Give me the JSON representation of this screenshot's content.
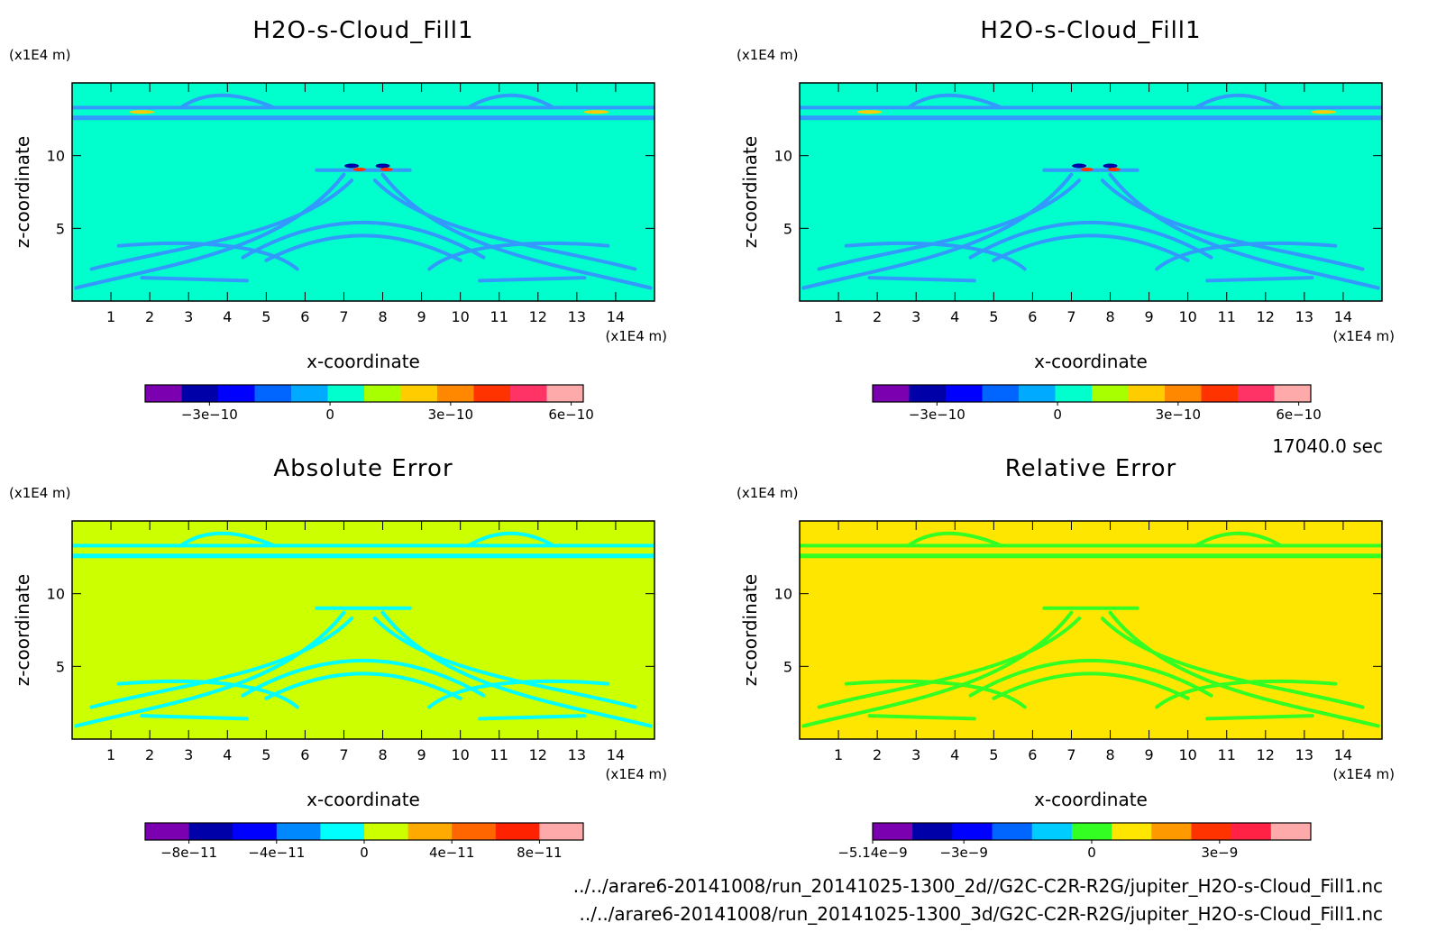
{
  "time_label": "17040.0 sec",
  "files": [
    "../../arare6-20141008/run_20141025-1300_2d//G2C-C2R-R2G/jupiter_H2O-s-Cloud_Fill1.nc",
    "../../arare6-20141008/run_20141025-1300_3d/G2C-C2R-R2G/jupiter_H2O-s-Cloud_Fill1.nc"
  ],
  "chart_data": [
    {
      "type": "heatmap",
      "title": "H2O-s-Cloud_Fill1",
      "xlabel": "x-coordinate",
      "ylabel": "z-coordinate",
      "x_unit": "(x1E4 m)",
      "y_unit": "(x1E4 m)",
      "xlim": [
        0,
        15
      ],
      "ylim": [
        0,
        15
      ],
      "xticks": [
        1,
        2,
        3,
        4,
        5,
        6,
        7,
        8,
        9,
        10,
        11,
        12,
        13,
        14
      ],
      "yticks": [
        5,
        10
      ],
      "background_color": "#00ffcc",
      "structure_color": "#3399ff",
      "colorbar": {
        "colors": [
          "#7a00b0",
          "#0000a8",
          "#0000ff",
          "#0066ff",
          "#00aaff",
          "#00ffcc",
          "#a8ff00",
          "#ffcc00",
          "#ff8800",
          "#ff3300",
          "#ff3366",
          "#ffaaaa"
        ],
        "tick_values": [
          -3e-10,
          0,
          3e-10,
          6e-10
        ],
        "tick_labels": [
          "−3e−10",
          "0",
          "3e−10",
          "6e−10"
        ],
        "range": [
          -4.6e-10,
          6.3e-10
        ]
      }
    },
    {
      "type": "heatmap",
      "title": "H2O-s-Cloud_Fill1",
      "xlabel": "x-coordinate",
      "ylabel": "z-coordinate",
      "x_unit": "(x1E4 m)",
      "y_unit": "(x1E4 m)",
      "xlim": [
        0,
        15
      ],
      "ylim": [
        0,
        15
      ],
      "xticks": [
        1,
        2,
        3,
        4,
        5,
        6,
        7,
        8,
        9,
        10,
        11,
        12,
        13,
        14
      ],
      "yticks": [
        5,
        10
      ],
      "background_color": "#00ffcc",
      "structure_color": "#3399ff",
      "colorbar": {
        "colors": [
          "#7a00b0",
          "#0000a8",
          "#0000ff",
          "#0066ff",
          "#00aaff",
          "#00ffcc",
          "#a8ff00",
          "#ffcc00",
          "#ff8800",
          "#ff3300",
          "#ff3366",
          "#ffaaaa"
        ],
        "tick_values": [
          -3e-10,
          0,
          3e-10,
          6e-10
        ],
        "tick_labels": [
          "−3e−10",
          "0",
          "3e−10",
          "6e−10"
        ],
        "range": [
          -4.6e-10,
          6.3e-10
        ]
      }
    },
    {
      "type": "heatmap",
      "title": "Absolute Error",
      "xlabel": "x-coordinate",
      "ylabel": "z-coordinate",
      "x_unit": "(x1E4 m)",
      "y_unit": "(x1E4 m)",
      "xlim": [
        0,
        15
      ],
      "ylim": [
        0,
        15
      ],
      "xticks": [
        1,
        2,
        3,
        4,
        5,
        6,
        7,
        8,
        9,
        10,
        11,
        12,
        13,
        14
      ],
      "yticks": [
        5,
        10
      ],
      "background_color": "#ccff00",
      "structure_color": "#00ffff",
      "colorbar": {
        "colors": [
          "#7a00b0",
          "#0000a8",
          "#0000ff",
          "#0088ff",
          "#00ffff",
          "#ccff00",
          "#ffaa00",
          "#ff6600",
          "#ff2200",
          "#ffaaaa"
        ],
        "tick_values": [
          -8e-11,
          -4e-11,
          0,
          4e-11,
          8e-11
        ],
        "tick_labels": [
          "−8e−11",
          "−4e−11",
          "0",
          "4e−11",
          "8e−11"
        ],
        "range": [
          -1e-10,
          1e-10
        ]
      }
    },
    {
      "type": "heatmap",
      "title": "Relative Error",
      "xlabel": "x-coordinate",
      "ylabel": "z-coordinate",
      "x_unit": "(x1E4 m)",
      "y_unit": "(x1E4 m)",
      "xlim": [
        0,
        15
      ],
      "ylim": [
        0,
        15
      ],
      "xticks": [
        1,
        2,
        3,
        4,
        5,
        6,
        7,
        8,
        9,
        10,
        11,
        12,
        13,
        14
      ],
      "yticks": [
        5,
        10
      ],
      "background_color": "#ffe600",
      "structure_color": "#33ff22",
      "colorbar": {
        "colors": [
          "#7a00b0",
          "#0000a8",
          "#0000ff",
          "#0066ff",
          "#00ccff",
          "#33ff22",
          "#ffe600",
          "#ff9900",
          "#ff3300",
          "#ff2244",
          "#ffaaaa"
        ],
        "tick_values": [
          -5.14e-09,
          -3e-09,
          0,
          3e-09
        ],
        "tick_labels": [
          "−5.14e−9",
          "−3e−9",
          "0",
          "3e−9"
        ],
        "range": [
          -5.14e-09,
          5.14e-09
        ]
      }
    }
  ]
}
